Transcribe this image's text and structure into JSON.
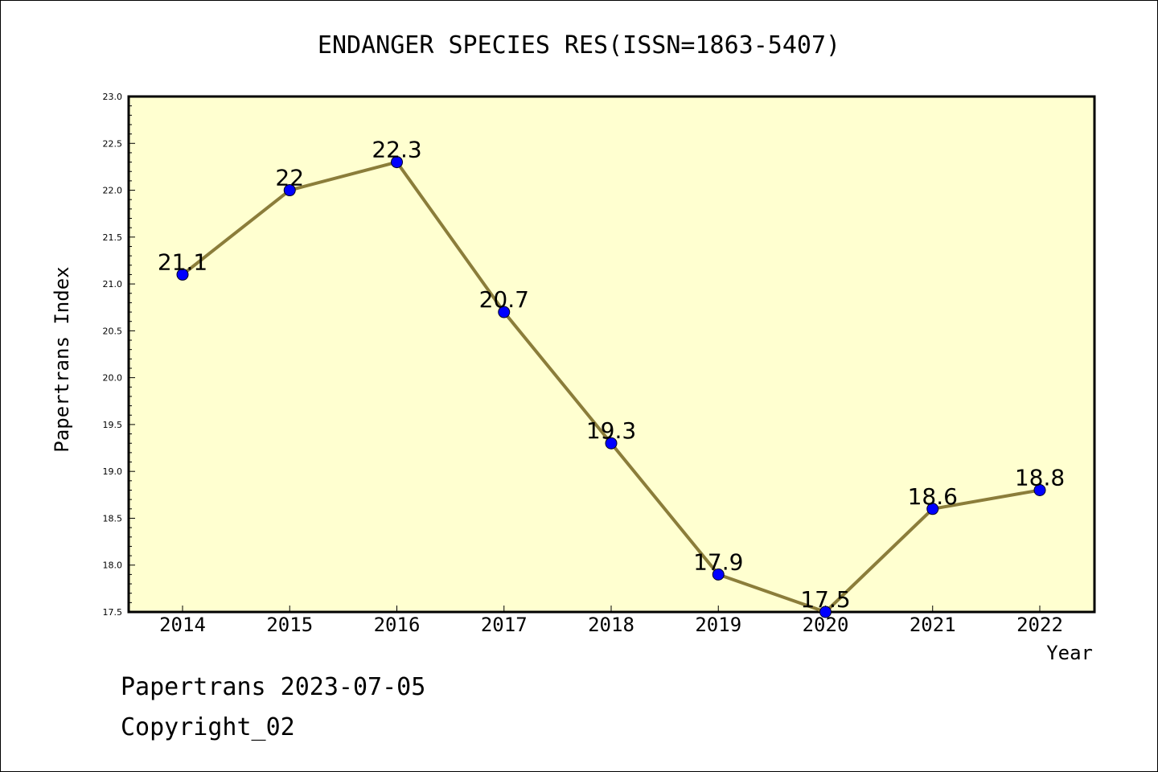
{
  "chart_data": {
    "type": "line",
    "title": "ENDANGER SPECIES RES(ISSN=1863-5407)",
    "xlabel": "Year",
    "ylabel": "Papertrans Index",
    "categories": [
      "2014",
      "2015",
      "2016",
      "2017",
      "2018",
      "2019",
      "2020",
      "2021",
      "2022"
    ],
    "series": [
      {
        "values": [
          21.1,
          22,
          22.3,
          20.7,
          19.3,
          17.9,
          17.5,
          18.6,
          18.8
        ],
        "labels": [
          "21.1",
          "22",
          "22.3",
          "20.7",
          "19.3",
          "17.9",
          "17.5",
          "18.6",
          "18.8"
        ]
      }
    ],
    "ylim": [
      17.5,
      23.0
    ],
    "yticks": [
      "17.5",
      "18.0",
      "18.5",
      "19.0",
      "19.5",
      "20.0",
      "20.5",
      "21.0",
      "21.5",
      "22.0",
      "22.5",
      "23.0"
    ],
    "grid": false,
    "colors": {
      "plot_background": "#ffffd0",
      "line": "#8b7d3a",
      "marker": "#0000ff"
    }
  },
  "footer": {
    "date_line": "Papertrans 2023-07-05",
    "copyright": "Copyright_02"
  }
}
